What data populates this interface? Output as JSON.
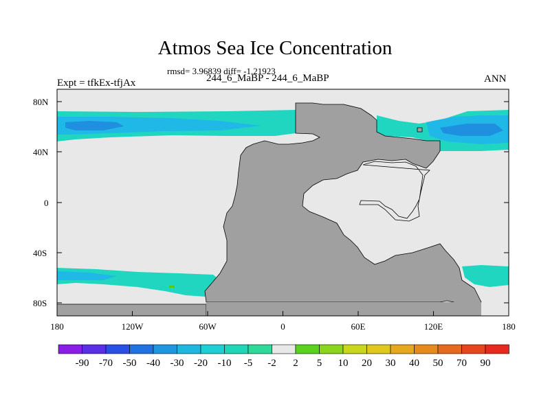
{
  "title": "Atmos Sea Ice Concentration",
  "stats": "rmsd= 3.96839 diff= -1.21923",
  "expt": "Expt = tfkEx-tfjAx",
  "case": "244_6_MaBP - 244_6_MaBP",
  "season": "ANN",
  "lat_ticks": [
    "80N",
    "40N",
    "0",
    "40S",
    "80S"
  ],
  "lon_ticks": [
    "180",
    "120W",
    "60W",
    "0",
    "60E",
    "120E",
    "180"
  ],
  "colorbar": {
    "labels": [
      "-90",
      "-70",
      "-50",
      "-40",
      "-30",
      "-20",
      "-10",
      "-5",
      "-2",
      "2",
      "5",
      "10",
      "20",
      "30",
      "40",
      "50",
      "70",
      "90"
    ],
    "colors": [
      "#8a1ee6",
      "#5a2fe6",
      "#2a4fe6",
      "#1f73e0",
      "#1f96e0",
      "#1fb6e0",
      "#1fcfd6",
      "#1fd6b8",
      "#2fd99a",
      "#e8e8e8",
      "#5ad21e",
      "#8ad61e",
      "#c8d61e",
      "#e0c81e",
      "#e6a81e",
      "#e68a1e",
      "#e66a1e",
      "#e6461e",
      "#e62a1e"
    ]
  },
  "colors": {
    "land": "#a0a0a0",
    "ocean_zero": "#e8e8e8",
    "ice_negative_light": "#20d6c0",
    "ice_negative_mid": "#20b8e6",
    "ice_negative_strong": "#1f8fe0",
    "ice_positive": "#4ccd1e"
  }
}
